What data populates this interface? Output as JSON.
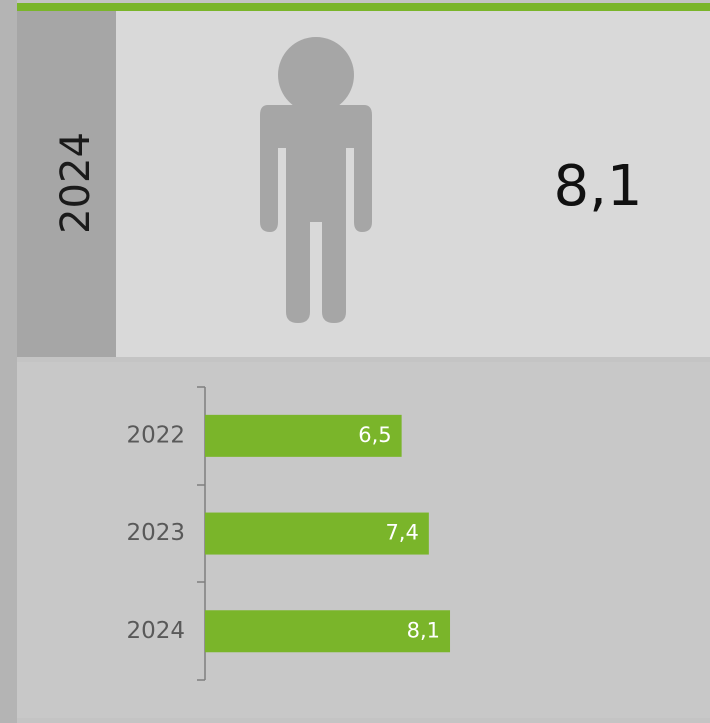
{
  "highlight": {
    "year": "2024",
    "value": "8,1"
  },
  "chart_data": {
    "type": "bar",
    "orientation": "horizontal",
    "categories": [
      "2022",
      "2023",
      "2024"
    ],
    "values": [
      6.5,
      7.4,
      8.1
    ],
    "value_labels": [
      "6,5",
      "7,4",
      "8,1"
    ],
    "color": "#7ab52a"
  }
}
